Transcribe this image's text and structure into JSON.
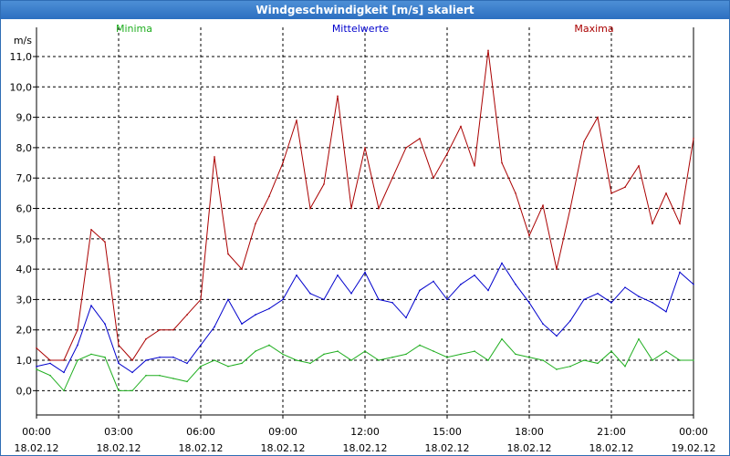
{
  "window": {
    "title": "Windgeschwindigkeit [m/s] skaliert"
  },
  "colors": {
    "minima": "#1fae1f",
    "mittelwerte": "#0000cc",
    "maxima": "#aa0000",
    "grid": "#000000"
  },
  "chart_data": {
    "type": "line",
    "title": "Windgeschwindigkeit [m/s] skaliert",
    "ylabel": "m/s",
    "ylim": [
      -0.8,
      11.6
    ],
    "y_ticks": [
      "0,0",
      "1,0",
      "2,0",
      "3,0",
      "4,0",
      "5,0",
      "6,0",
      "7,0",
      "8,0",
      "9,0",
      "10,0",
      "11,0"
    ],
    "x_ticks": [
      {
        "time": "00:00",
        "date": "18.02.12"
      },
      {
        "time": "03:00",
        "date": "18.02.12"
      },
      {
        "time": "06:00",
        "date": "18.02.12"
      },
      {
        "time": "09:00",
        "date": "18.02.12"
      },
      {
        "time": "12:00",
        "date": "18.02.12"
      },
      {
        "time": "15:00",
        "date": "18.02.12"
      },
      {
        "time": "18:00",
        "date": "18.02.12"
      },
      {
        "time": "21:00",
        "date": "18.02.12"
      },
      {
        "time": "00:00",
        "date": "19.02.12"
      }
    ],
    "xlim_hours": [
      0,
      24
    ],
    "grid": true,
    "legend_placement": "top",
    "series": [
      {
        "name": "Minima",
        "color": "#1fae1f",
        "x": [
          0,
          0.5,
          1,
          1.5,
          2,
          2.5,
          3,
          3.5,
          4,
          4.5,
          5,
          5.5,
          6,
          6.5,
          7,
          7.5,
          8,
          8.5,
          9,
          9.5,
          10,
          10.5,
          11,
          11.5,
          12,
          12.5,
          13,
          13.5,
          14,
          14.5,
          15,
          15.5,
          16,
          16.5,
          17,
          17.5,
          18,
          18.5,
          19,
          19.5,
          20,
          20.5,
          21,
          21.5,
          22,
          22.5,
          23,
          23.5,
          24
        ],
        "values": [
          0.7,
          0.5,
          0.0,
          1.0,
          1.2,
          1.1,
          0.0,
          0.0,
          0.5,
          0.5,
          0.4,
          0.3,
          0.8,
          1.0,
          0.8,
          0.9,
          1.3,
          1.5,
          1.2,
          1.0,
          0.9,
          1.2,
          1.3,
          1.0,
          1.3,
          1.0,
          1.1,
          1.2,
          1.5,
          1.3,
          1.1,
          1.2,
          1.3,
          1.0,
          1.7,
          1.2,
          1.1,
          1.0,
          0.7,
          0.8,
          1.0,
          0.9,
          1.3,
          0.8,
          1.7,
          1.0,
          1.3,
          1.0,
          1.0
        ]
      },
      {
        "name": "Mittelwerte",
        "color": "#0000cc",
        "x": [
          0,
          0.5,
          1,
          1.5,
          2,
          2.5,
          3,
          3.5,
          4,
          4.5,
          5,
          5.5,
          6,
          6.5,
          7,
          7.5,
          8,
          8.5,
          9,
          9.5,
          10,
          10.5,
          11,
          11.5,
          12,
          12.5,
          13,
          13.5,
          14,
          14.5,
          15,
          15.5,
          16,
          16.5,
          17,
          17.5,
          18,
          18.5,
          19,
          19.5,
          20,
          20.5,
          21,
          21.5,
          22,
          22.5,
          23,
          23.5,
          24
        ],
        "values": [
          0.8,
          0.9,
          0.6,
          1.5,
          2.8,
          2.2,
          0.9,
          0.6,
          1.0,
          1.1,
          1.1,
          0.9,
          1.5,
          2.1,
          3.0,
          2.2,
          2.5,
          2.7,
          3.0,
          3.8,
          3.2,
          3.0,
          3.8,
          3.2,
          3.9,
          3.0,
          2.9,
          2.4,
          3.3,
          3.6,
          3.0,
          3.5,
          3.8,
          3.3,
          4.2,
          3.5,
          2.9,
          2.2,
          1.8,
          2.3,
          3.0,
          3.2,
          2.9,
          3.4,
          3.1,
          2.9,
          2.6,
          3.9,
          3.5
        ]
      },
      {
        "name": "Maxima",
        "color": "#aa0000",
        "x": [
          0,
          0.5,
          1,
          1.5,
          2,
          2.5,
          3,
          3.5,
          4,
          4.5,
          5,
          5.5,
          6,
          6.5,
          7,
          7.5,
          8,
          8.5,
          9,
          9.5,
          10,
          10.5,
          11,
          11.5,
          12,
          12.5,
          13,
          13.5,
          14,
          14.5,
          15,
          15.5,
          16,
          16.5,
          17,
          17.5,
          18,
          18.5,
          19,
          19.5,
          20,
          20.5,
          21,
          21.5,
          22,
          22.5,
          23,
          23.5,
          24
        ],
        "values": [
          1.4,
          1.0,
          1.0,
          2.0,
          5.3,
          4.9,
          1.5,
          1.0,
          1.7,
          2.0,
          2.0,
          2.5,
          3.0,
          7.7,
          4.5,
          4.0,
          5.5,
          6.4,
          7.5,
          8.9,
          6.0,
          6.8,
          9.7,
          6.0,
          8.0,
          6.0,
          7.0,
          8.0,
          8.3,
          7.0,
          7.8,
          8.7,
          7.4,
          11.2,
          7.5,
          6.5,
          5.1,
          6.1,
          4.0,
          6.0,
          8.2,
          9.0,
          6.5,
          6.7,
          7.4,
          5.5,
          6.5,
          5.5,
          8.3
        ]
      }
    ]
  }
}
